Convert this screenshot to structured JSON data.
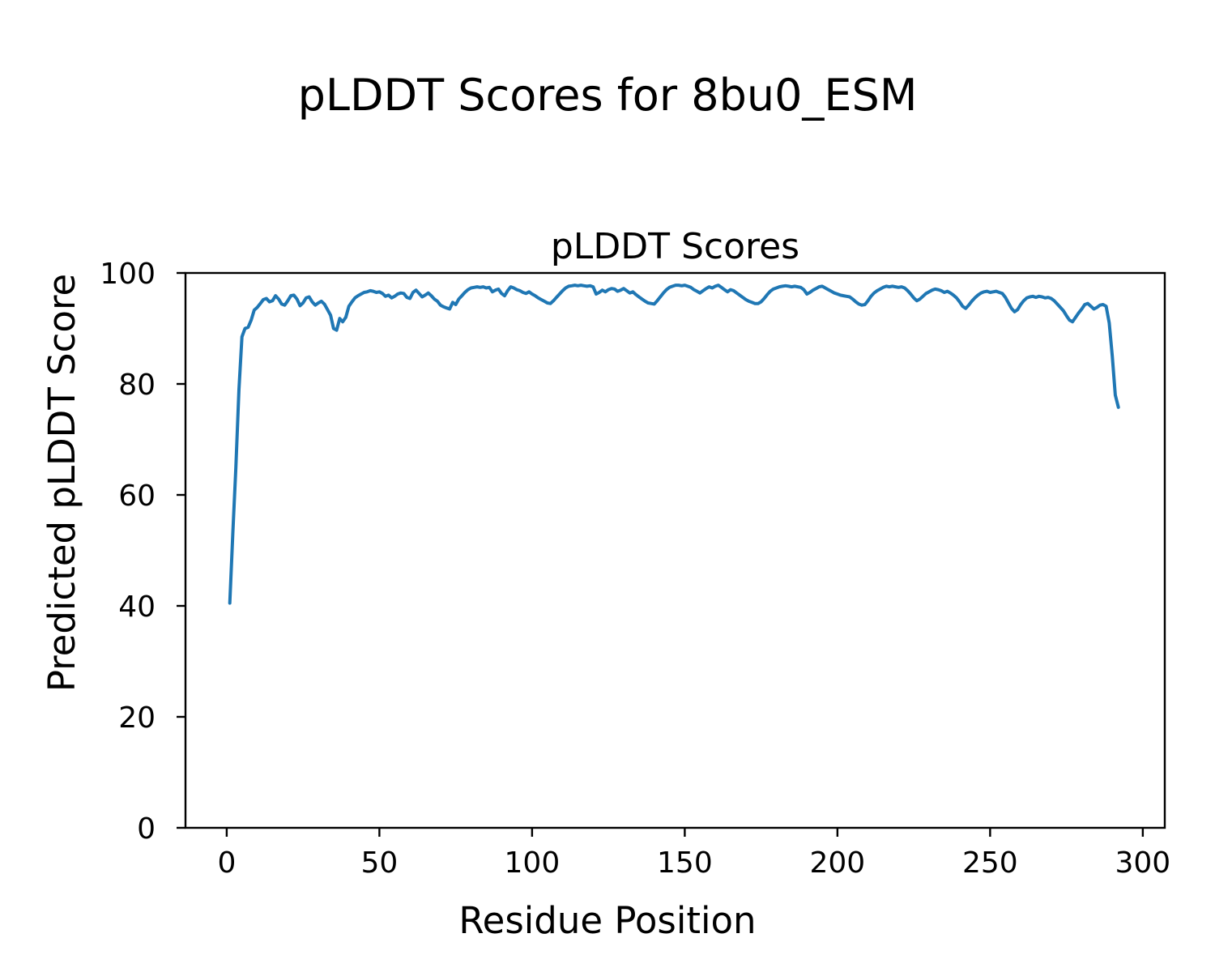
{
  "figure": {
    "suptitle": "pLDDT Scores for 8bu0_ESM",
    "background_color": "#ffffff",
    "text_color": "#000000"
  },
  "chart_data": {
    "type": "line",
    "title": "pLDDT Scores",
    "xlabel": "Residue Position",
    "ylabel": "Predicted pLDDT Score",
    "x_ticks": [
      0,
      50,
      100,
      150,
      200,
      250,
      300
    ],
    "y_ticks": [
      0,
      20,
      40,
      60,
      80,
      100
    ],
    "xlim": [
      -13.5,
      307.2
    ],
    "ylim": [
      0,
      100
    ],
    "grid": false,
    "legend": "none",
    "line_color": "#1f77b4",
    "line_width": 4,
    "series": [
      {
        "name": "pLDDT",
        "x_start": 1,
        "x_step": 1,
        "values": [
          40.5,
          53.0,
          65.0,
          79.0,
          88.5,
          90.0,
          90.2,
          91.5,
          93.3,
          93.8,
          94.5,
          95.2,
          95.4,
          94.8,
          95.0,
          95.9,
          95.3,
          94.4,
          94.2,
          95.0,
          95.9,
          96.0,
          95.3,
          94.1,
          94.6,
          95.5,
          95.7,
          94.8,
          94.2,
          94.6,
          94.9,
          94.4,
          93.4,
          92.4,
          90.0,
          89.7,
          91.8,
          91.2,
          92.0,
          94.0,
          94.8,
          95.5,
          95.9,
          96.2,
          96.5,
          96.6,
          96.8,
          96.7,
          96.5,
          96.6,
          96.3,
          95.8,
          96.0,
          95.5,
          95.8,
          96.2,
          96.4,
          96.3,
          95.6,
          95.4,
          96.5,
          96.9,
          96.3,
          95.7,
          96.0,
          96.4,
          95.9,
          95.3,
          94.9,
          94.2,
          93.9,
          93.7,
          93.5,
          94.7,
          94.3,
          95.3,
          95.9,
          96.5,
          97.0,
          97.3,
          97.4,
          97.5,
          97.4,
          97.5,
          97.3,
          97.4,
          96.6,
          96.9,
          97.1,
          96.3,
          95.9,
          96.8,
          97.5,
          97.3,
          97.0,
          96.8,
          96.5,
          96.3,
          96.6,
          96.2,
          95.9,
          95.5,
          95.2,
          94.9,
          94.6,
          94.5,
          95.0,
          95.6,
          96.2,
          96.8,
          97.3,
          97.6,
          97.7,
          97.8,
          97.7,
          97.8,
          97.7,
          97.6,
          97.7,
          97.5,
          96.2,
          96.5,
          96.9,
          96.6,
          97.0,
          97.2,
          97.1,
          96.7,
          96.9,
          97.2,
          96.8,
          96.4,
          96.6,
          96.1,
          95.7,
          95.3,
          94.9,
          94.6,
          94.5,
          94.4,
          95.0,
          95.7,
          96.4,
          97.0,
          97.4,
          97.6,
          97.8,
          97.8,
          97.7,
          97.8,
          97.6,
          97.4,
          97.0,
          96.7,
          96.4,
          96.8,
          97.2,
          97.5,
          97.3,
          97.6,
          97.8,
          97.4,
          97.0,
          96.6,
          97.0,
          96.8,
          96.4,
          96.0,
          95.6,
          95.2,
          94.9,
          94.7,
          94.5,
          94.5,
          94.8,
          95.4,
          96.1,
          96.7,
          97.1,
          97.3,
          97.5,
          97.6,
          97.7,
          97.6,
          97.5,
          97.6,
          97.5,
          97.4,
          97.0,
          96.2,
          96.5,
          96.9,
          97.2,
          97.5,
          97.6,
          97.3,
          97.0,
          96.7,
          96.4,
          96.2,
          96.0,
          95.9,
          95.8,
          95.7,
          95.3,
          94.8,
          94.4,
          94.2,
          94.3,
          95.0,
          95.8,
          96.4,
          96.8,
          97.1,
          97.4,
          97.6,
          97.5,
          97.6,
          97.5,
          97.4,
          97.5,
          97.3,
          96.8,
          96.2,
          95.5,
          95.0,
          95.3,
          95.8,
          96.3,
          96.6,
          96.9,
          97.1,
          97.0,
          96.8,
          96.5,
          96.7,
          96.4,
          96.0,
          95.5,
          94.8,
          94.0,
          93.6,
          94.2,
          94.9,
          95.5,
          96.0,
          96.4,
          96.6,
          96.7,
          96.5,
          96.6,
          96.7,
          96.5,
          96.3,
          95.6,
          94.6,
          93.6,
          93.0,
          93.4,
          94.3,
          95.0,
          95.5,
          95.7,
          95.8,
          95.6,
          95.8,
          95.7,
          95.5,
          95.6,
          95.4,
          95.0,
          94.4,
          93.8,
          93.2,
          92.3,
          91.5,
          91.2,
          92.0,
          92.8,
          93.5,
          94.3,
          94.5,
          94.0,
          93.5,
          93.8,
          94.2,
          94.3,
          94.0,
          91.0,
          85.0,
          78.0,
          75.8
        ]
      }
    ]
  }
}
